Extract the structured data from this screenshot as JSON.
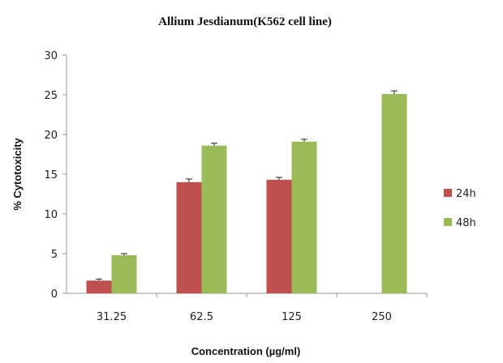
{
  "chart_data": {
    "type": "bar",
    "title": "Allium Jesdianum(K562  cell line)",
    "xlabel": "Concentration (µg/ml)",
    "ylabel": "% Cytotoxicity",
    "categories": [
      "31.25",
      "62.5",
      "125",
      "250"
    ],
    "series": [
      {
        "name": "24h",
        "color": "#c0504d",
        "values": [
          1.6,
          14.0,
          14.3,
          null
        ],
        "errors": [
          0.2,
          0.4,
          0.3,
          null
        ]
      },
      {
        "name": "48h",
        "color": "#9bbb59",
        "values": [
          4.8,
          18.6,
          19.1,
          25.1
        ],
        "errors": [
          0.2,
          0.3,
          0.3,
          0.4
        ]
      }
    ],
    "ylim": [
      0,
      30
    ],
    "yticks": [
      0,
      5,
      10,
      15,
      20,
      25,
      30
    ],
    "grid": false,
    "legend": "right"
  }
}
